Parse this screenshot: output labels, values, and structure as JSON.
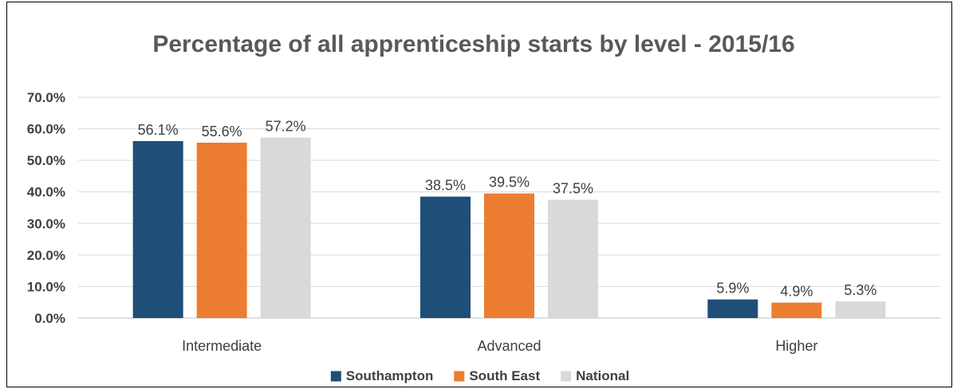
{
  "chart_data": {
    "type": "bar",
    "title": "Percentage of all apprenticeship starts by level - 2015/16",
    "xlabel": "",
    "ylabel": "",
    "categories": [
      "Intermediate",
      "Advanced",
      "Higher"
    ],
    "series": [
      {
        "name": "Southampton",
        "color": "#1f4e79",
        "values": [
          56.1,
          38.5,
          5.9
        ],
        "labels": [
          "56.1%",
          "38.5%",
          "5.9%"
        ]
      },
      {
        "name": "South East",
        "color": "#ed7d31",
        "values": [
          55.6,
          39.5,
          4.9
        ],
        "labels": [
          "55.6%",
          "39.5%",
          "4.9%"
        ]
      },
      {
        "name": "National",
        "color": "#d9d9d9",
        "values": [
          57.2,
          37.5,
          5.3
        ],
        "labels": [
          "57.2%",
          "37.5%",
          "5.3%"
        ]
      }
    ],
    "ylim": [
      0,
      70
    ],
    "yticks": [
      0,
      10,
      20,
      30,
      40,
      50,
      60,
      70
    ],
    "ytick_labels": [
      "0.0%",
      "10.0%",
      "20.0%",
      "30.0%",
      "40.0%",
      "50.0%",
      "60.0%",
      "70.0%"
    ],
    "grid": true,
    "legend_position": "bottom"
  }
}
